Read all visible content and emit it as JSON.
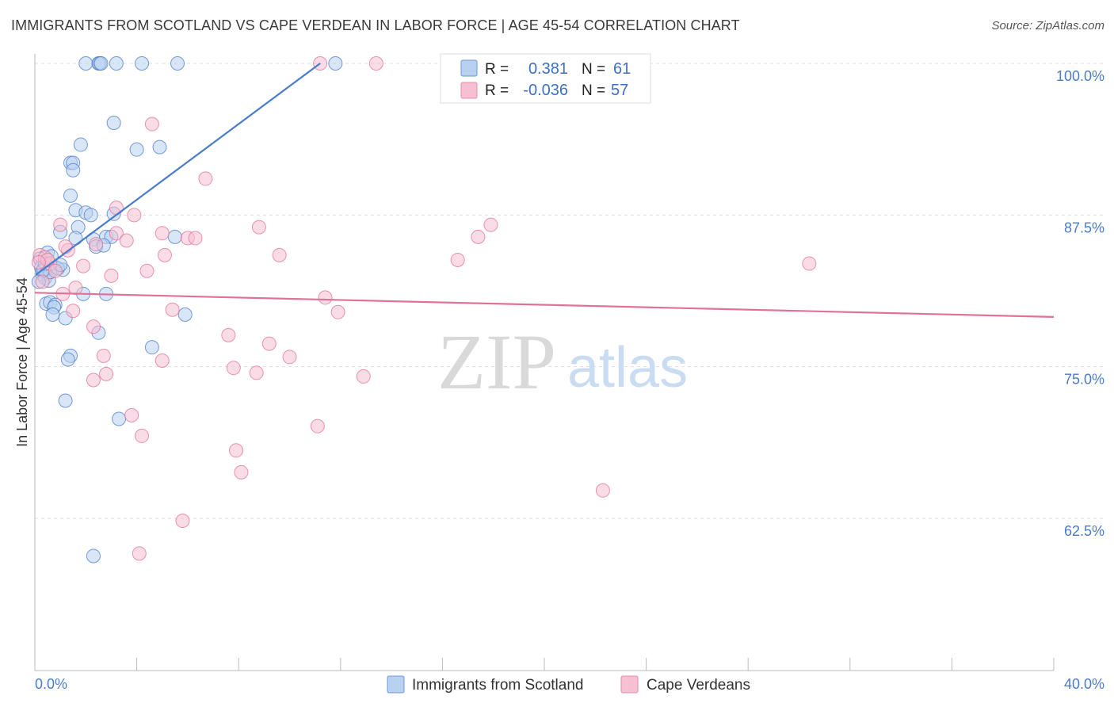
{
  "header": {
    "title": "IMMIGRANTS FROM SCOTLAND VS CAPE VERDEAN IN LABOR FORCE | AGE 45-54 CORRELATION CHART",
    "source": "Source: ZipAtlas.com"
  },
  "watermark": {
    "zip": "ZIP",
    "atlas": "atlas"
  },
  "chart_data": {
    "type": "scatter",
    "title": "IMMIGRANTS FROM SCOTLAND VS CAPE VERDEAN IN LABOR FORCE | AGE 45-54 CORRELATION CHART",
    "xlabel": "",
    "ylabel": "In Labor Force | Age 45-54",
    "xlim": [
      0,
      40
    ],
    "ylim": [
      50,
      102
    ],
    "x_tick_labels": [
      "0.0%",
      "40.0%"
    ],
    "y_ticks": [
      {
        "value": 100,
        "label": "100.0%"
      },
      {
        "value": 87.5,
        "label": "87.5%"
      },
      {
        "value": 75,
        "label": "75.0%"
      },
      {
        "value": 62.5,
        "label": "62.5%"
      }
    ],
    "legend": {
      "stats": [
        {
          "r_label": "R =",
          "r_value": "0.381",
          "n_label": "N =",
          "n_value": "61"
        },
        {
          "r_label": "R =",
          "r_value": "-0.036",
          "n_label": "N =",
          "n_value": "57"
        }
      ]
    },
    "series": [
      {
        "name": "Immigrants from Scotland",
        "color": "#4a7cc9",
        "fill": "#b9d1f1",
        "trend": {
          "x": [
            0.05,
            11.2
          ],
          "y": [
            82.6,
            100.0
          ]
        },
        "points": [
          [
            2.0,
            100.0
          ],
          [
            2.5,
            100.0
          ],
          [
            2.55,
            100.0
          ],
          [
            2.6,
            100.0
          ],
          [
            3.2,
            100.0
          ],
          [
            4.2,
            100.0
          ],
          [
            5.6,
            100.0
          ],
          [
            11.8,
            100.0
          ],
          [
            3.1,
            95.1
          ],
          [
            1.8,
            93.3
          ],
          [
            4.0,
            92.9
          ],
          [
            4.9,
            93.1
          ],
          [
            1.4,
            91.8
          ],
          [
            1.5,
            91.8
          ],
          [
            1.5,
            91.2
          ],
          [
            1.4,
            89.1
          ],
          [
            1.6,
            87.9
          ],
          [
            2.0,
            87.7
          ],
          [
            2.2,
            87.5
          ],
          [
            3.1,
            87.6
          ],
          [
            1.7,
            86.5
          ],
          [
            1.0,
            86.1
          ],
          [
            1.6,
            85.6
          ],
          [
            2.3,
            85.5
          ],
          [
            2.4,
            84.9
          ],
          [
            2.8,
            85.7
          ],
          [
            3.0,
            85.7
          ],
          [
            5.5,
            85.7
          ],
          [
            0.5,
            84.4
          ],
          [
            0.2,
            83.9
          ],
          [
            0.25,
            83.2
          ],
          [
            0.3,
            82.6
          ],
          [
            0.4,
            82.3
          ],
          [
            0.55,
            82.1
          ],
          [
            0.8,
            83.2
          ],
          [
            1.1,
            83.0
          ],
          [
            0.45,
            80.2
          ],
          [
            0.6,
            80.3
          ],
          [
            0.8,
            80.1
          ],
          [
            0.75,
            79.9
          ],
          [
            0.7,
            79.3
          ],
          [
            1.2,
            79.0
          ],
          [
            1.9,
            81.0
          ],
          [
            2.8,
            81.0
          ],
          [
            2.5,
            77.8
          ],
          [
            5.9,
            79.3
          ],
          [
            1.4,
            75.9
          ],
          [
            1.3,
            75.6
          ],
          [
            4.6,
            76.6
          ],
          [
            1.2,
            72.2
          ],
          [
            3.3,
            70.7
          ],
          [
            2.3,
            59.4
          ],
          [
            0.35,
            83.0
          ],
          [
            0.6,
            82.8
          ],
          [
            0.65,
            84.1
          ],
          [
            0.3,
            82.9
          ],
          [
            0.4,
            83.5
          ],
          [
            0.9,
            83.1
          ],
          [
            1.0,
            83.4
          ],
          [
            0.15,
            82.0
          ],
          [
            2.7,
            85.0
          ]
        ]
      },
      {
        "name": "Cape Verdeans",
        "color": "#e07298",
        "fill": "#f6c0d2",
        "trend": {
          "x": [
            0.0,
            40.0
          ],
          "y": [
            81.1,
            79.1
          ]
        },
        "points": [
          [
            11.2,
            100.0
          ],
          [
            13.4,
            100.0
          ],
          [
            4.6,
            95.0
          ],
          [
            6.7,
            90.5
          ],
          [
            3.2,
            88.1
          ],
          [
            3.9,
            87.5
          ],
          [
            8.8,
            86.5
          ],
          [
            17.9,
            86.7
          ],
          [
            17.4,
            85.7
          ],
          [
            1.0,
            86.7
          ],
          [
            3.2,
            86.0
          ],
          [
            3.6,
            85.4
          ],
          [
            5.0,
            86.0
          ],
          [
            6.0,
            85.6
          ],
          [
            6.3,
            85.6
          ],
          [
            2.4,
            85.1
          ],
          [
            0.2,
            84.2
          ],
          [
            0.4,
            84.0
          ],
          [
            0.6,
            83.5
          ],
          [
            1.3,
            84.6
          ],
          [
            5.1,
            84.2
          ],
          [
            9.6,
            84.2
          ],
          [
            16.6,
            83.8
          ],
          [
            30.4,
            83.5
          ],
          [
            1.9,
            83.3
          ],
          [
            3.0,
            82.5
          ],
          [
            4.4,
            82.9
          ],
          [
            0.3,
            82.0
          ],
          [
            1.6,
            81.5
          ],
          [
            1.1,
            81.0
          ],
          [
            11.4,
            80.7
          ],
          [
            1.5,
            79.6
          ],
          [
            5.4,
            79.7
          ],
          [
            11.9,
            79.5
          ],
          [
            2.3,
            78.3
          ],
          [
            7.6,
            77.6
          ],
          [
            9.2,
            76.9
          ],
          [
            2.7,
            75.9
          ],
          [
            10.0,
            75.8
          ],
          [
            5.0,
            75.5
          ],
          [
            7.8,
            74.9
          ],
          [
            8.7,
            74.5
          ],
          [
            2.8,
            74.4
          ],
          [
            12.9,
            74.2
          ],
          [
            2.3,
            73.9
          ],
          [
            3.8,
            71.0
          ],
          [
            11.1,
            70.1
          ],
          [
            4.2,
            69.3
          ],
          [
            7.9,
            68.1
          ],
          [
            8.1,
            66.3
          ],
          [
            22.3,
            64.8
          ],
          [
            5.8,
            62.3
          ],
          [
            4.1,
            59.6
          ],
          [
            0.5,
            83.8
          ],
          [
            0.8,
            82.9
          ],
          [
            0.15,
            83.6
          ],
          [
            1.2,
            84.9
          ]
        ]
      }
    ]
  }
}
